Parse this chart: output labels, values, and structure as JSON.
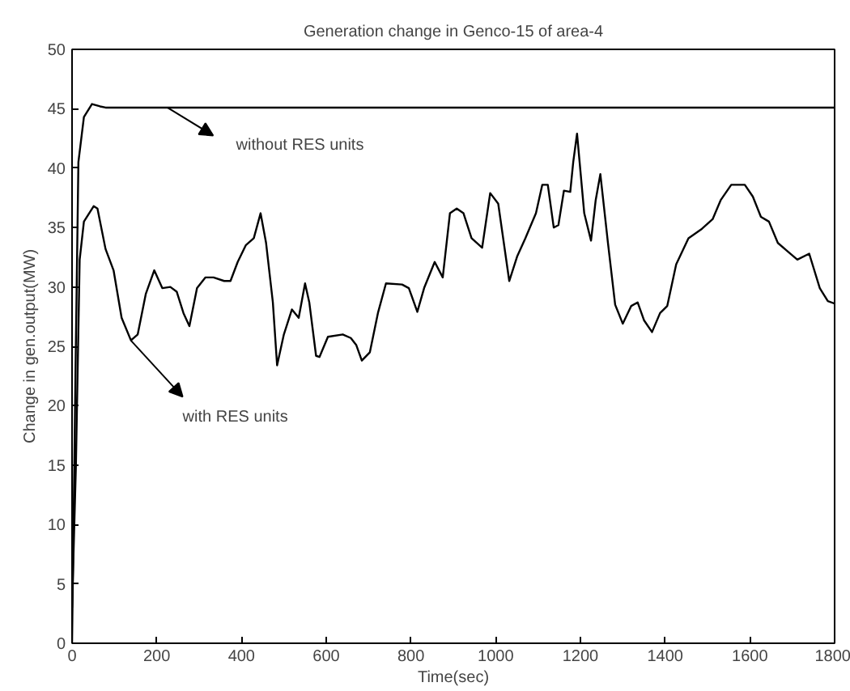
{
  "chart_data": {
    "type": "line",
    "title": "Generation change in Genco-15 of area-4",
    "xlabel": "Time(sec)",
    "ylabel": "Change in gen.output(MW)",
    "xlim": [
      0,
      1800
    ],
    "ylim": [
      0,
      50
    ],
    "xticks": [
      0,
      200,
      400,
      600,
      800,
      1000,
      1200,
      1400,
      1600,
      1800
    ],
    "yticks": [
      0,
      5,
      10,
      15,
      20,
      25,
      30,
      35,
      40,
      45,
      50
    ],
    "grid": false,
    "marker": "none",
    "line_style": "solid",
    "series": [
      {
        "color": "#000000",
        "x": [
          0,
          8,
          15,
          28,
          47,
          66,
          79,
          1800
        ],
        "values": [
          0,
          22.4,
          40.5,
          44.3,
          45.4,
          45.2,
          45.1,
          45.1
        ]
      },
      {
        "color": "#000000",
        "x": [
          0,
          9,
          18,
          28,
          51,
          60,
          79,
          98,
          117,
          139,
          155,
          174,
          194,
          213,
          232,
          247,
          263,
          277,
          295,
          315,
          334,
          359,
          374,
          391,
          410,
          429,
          445,
          458,
          474,
          484,
          500,
          519,
          535,
          550,
          560,
          576,
          584,
          604,
          639,
          658,
          671,
          684,
          703,
          722,
          741,
          779,
          795,
          815,
          831,
          856,
          875,
          892,
          908,
          924,
          943,
          968,
          987,
          1006,
          1032,
          1051,
          1070,
          1095,
          1110,
          1123,
          1137,
          1148,
          1161,
          1176,
          1183,
          1192,
          1209,
          1225,
          1236,
          1247,
          1265,
          1282,
          1300,
          1320,
          1335,
          1350,
          1369,
          1388,
          1405,
          1426,
          1455,
          1487,
          1512,
          1531,
          1556,
          1588,
          1607,
          1626,
          1645,
          1666,
          1689,
          1712,
          1740,
          1765,
          1784,
          1800
        ],
        "values": [
          3,
          14.8,
          32.3,
          35.5,
          36.8,
          36.6,
          33.2,
          31.4,
          27.4,
          25.5,
          26,
          29.4,
          31.4,
          29.9,
          30,
          29.6,
          27.8,
          26.7,
          29.9,
          30.8,
          30.8,
          30.5,
          30.5,
          32.1,
          33.5,
          34.1,
          36.2,
          33.7,
          28.7,
          23.4,
          26,
          28.1,
          27.4,
          30.3,
          28.7,
          24.2,
          24.1,
          25.8,
          26,
          25.7,
          25.1,
          23.8,
          24.5,
          27.8,
          30.3,
          30.2,
          29.9,
          27.9,
          29.9,
          32.1,
          30.8,
          36.2,
          36.6,
          36.2,
          34.1,
          33.3,
          37.9,
          37,
          30.5,
          32.6,
          34.1,
          36.2,
          38.6,
          38.6,
          35,
          35.2,
          38.1,
          38,
          40.5,
          42.9,
          36.2,
          33.9,
          37.3,
          39.5,
          33.7,
          28.5,
          26.9,
          28.4,
          28.7,
          27.2,
          26.2,
          27.8,
          28.4,
          31.9,
          34.1,
          34.9,
          35.7,
          37.3,
          38.6,
          38.6,
          37.6,
          35.9,
          35.5,
          33.7,
          33,
          32.3,
          32.8,
          29.9,
          28.8,
          28.6
        ]
      }
    ],
    "annotations": [
      "without RES units",
      "with RES units"
    ]
  }
}
